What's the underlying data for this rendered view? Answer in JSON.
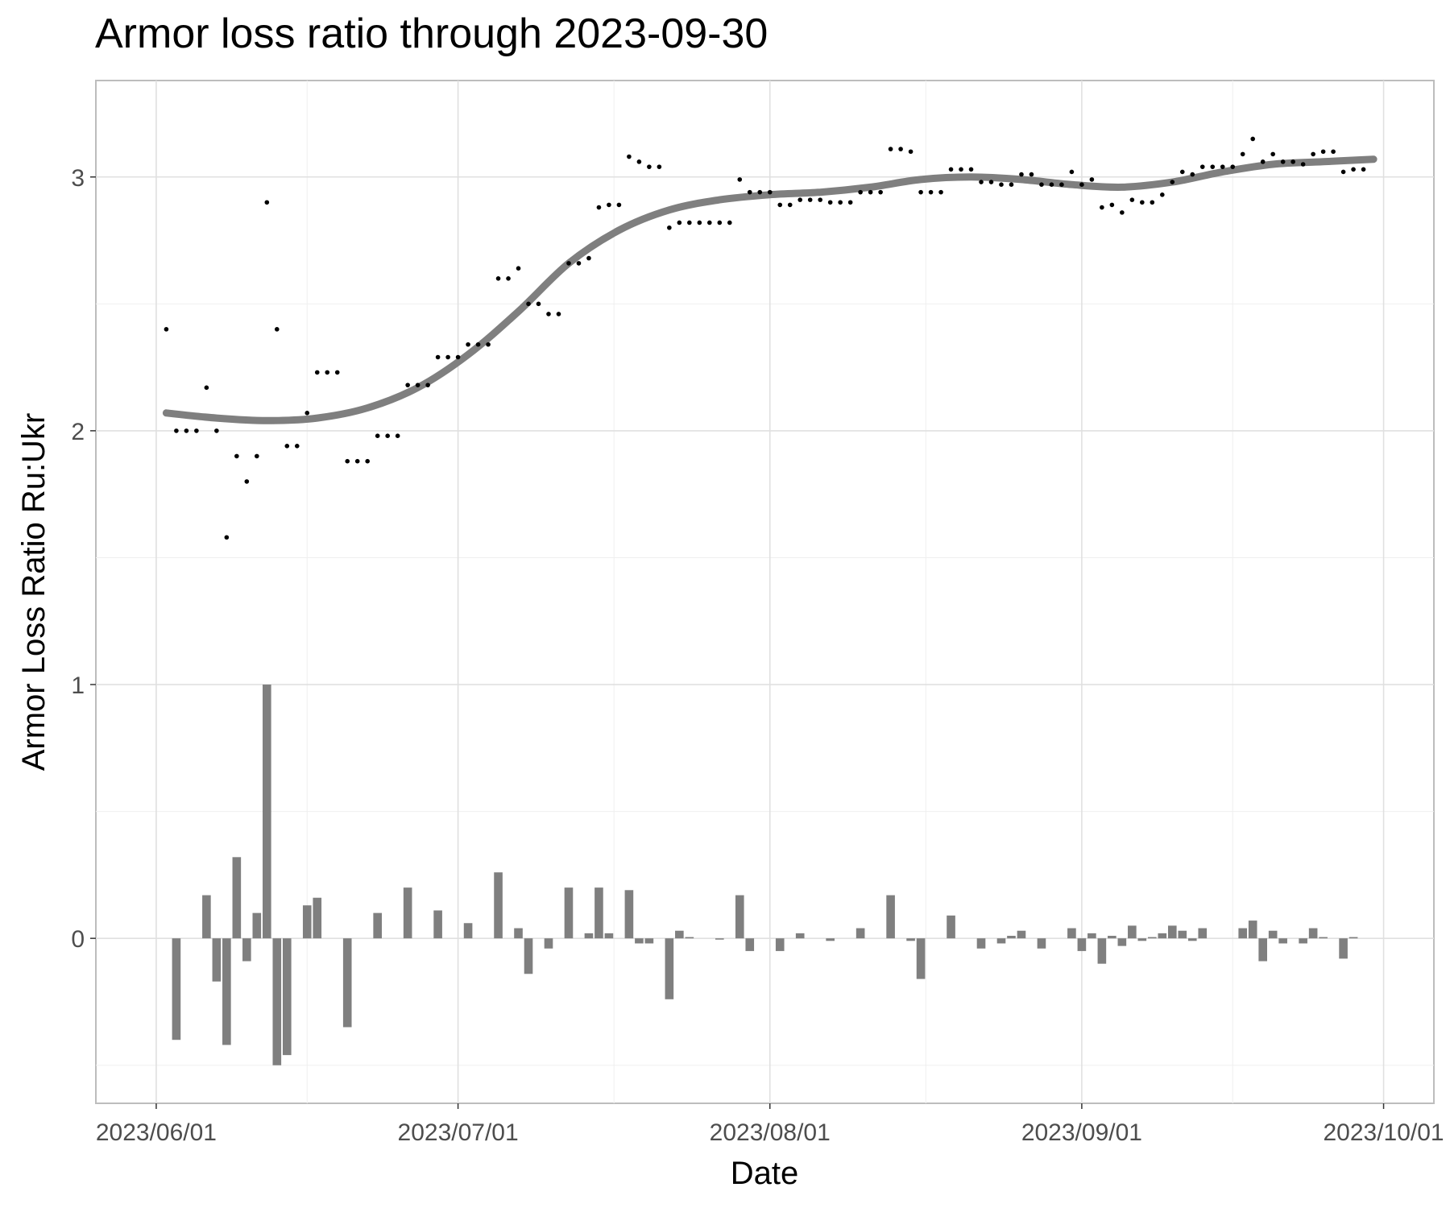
{
  "chart_data": {
    "title": "Armor loss ratio through 2023-09-30",
    "type": "scatter+line+bar",
    "xlabel": "Date",
    "ylabel": "Armor Loss Ratio Ru:Ukr",
    "x_range": [
      "2023-05-26",
      "2023-10-06"
    ],
    "ylim": [
      -0.65,
      3.38
    ],
    "y_ticks": [
      0,
      1,
      2,
      3
    ],
    "x_ticks": [
      {
        "date": "2023-06-01",
        "label": "2023/06/01"
      },
      {
        "date": "2023-07-01",
        "label": "2023/07/01"
      },
      {
        "date": "2023-08-01",
        "label": "2023/08/01"
      },
      {
        "date": "2023-09-01",
        "label": "2023/09/01"
      },
      {
        "date": "2023-10-01",
        "label": "2023/10/01"
      }
    ],
    "grid": true,
    "series": [
      {
        "type": "scatter",
        "color": "#000000",
        "points": [
          [
            "2023-06-02",
            2.4
          ],
          [
            "2023-06-03",
            2.0
          ],
          [
            "2023-06-04",
            2.0
          ],
          [
            "2023-06-05",
            2.0
          ],
          [
            "2023-06-06",
            2.17
          ],
          [
            "2023-06-07",
            2.0
          ],
          [
            "2023-06-08",
            1.58
          ],
          [
            "2023-06-09",
            1.9
          ],
          [
            "2023-06-10",
            1.8
          ],
          [
            "2023-06-11",
            1.9
          ],
          [
            "2023-06-12",
            2.9
          ],
          [
            "2023-06-13",
            2.4
          ],
          [
            "2023-06-14",
            1.94
          ],
          [
            "2023-06-15",
            1.94
          ],
          [
            "2023-06-16",
            2.07
          ],
          [
            "2023-06-17",
            2.23
          ],
          [
            "2023-06-18",
            2.23
          ],
          [
            "2023-06-19",
            2.23
          ],
          [
            "2023-06-20",
            1.88
          ],
          [
            "2023-06-21",
            1.88
          ],
          [
            "2023-06-22",
            1.88
          ],
          [
            "2023-06-23",
            1.98
          ],
          [
            "2023-06-24",
            1.98
          ],
          [
            "2023-06-25",
            1.98
          ],
          [
            "2023-06-26",
            2.18
          ],
          [
            "2023-06-27",
            2.18
          ],
          [
            "2023-06-28",
            2.18
          ],
          [
            "2023-06-29",
            2.29
          ],
          [
            "2023-06-30",
            2.29
          ],
          [
            "2023-07-01",
            2.29
          ],
          [
            "2023-07-02",
            2.34
          ],
          [
            "2023-07-03",
            2.34
          ],
          [
            "2023-07-04",
            2.34
          ],
          [
            "2023-07-05",
            2.6
          ],
          [
            "2023-07-06",
            2.6
          ],
          [
            "2023-07-07",
            2.64
          ],
          [
            "2023-07-08",
            2.5
          ],
          [
            "2023-07-09",
            2.5
          ],
          [
            "2023-07-10",
            2.46
          ],
          [
            "2023-07-11",
            2.46
          ],
          [
            "2023-07-12",
            2.66
          ],
          [
            "2023-07-13",
            2.66
          ],
          [
            "2023-07-14",
            2.68
          ],
          [
            "2023-07-15",
            2.88
          ],
          [
            "2023-07-16",
            2.89
          ],
          [
            "2023-07-17",
            2.89
          ],
          [
            "2023-07-18",
            3.08
          ],
          [
            "2023-07-19",
            3.06
          ],
          [
            "2023-07-20",
            3.04
          ],
          [
            "2023-07-21",
            3.04
          ],
          [
            "2023-07-22",
            2.8
          ],
          [
            "2023-07-23",
            2.82
          ],
          [
            "2023-07-24",
            2.82
          ],
          [
            "2023-07-25",
            2.82
          ],
          [
            "2023-07-26",
            2.82
          ],
          [
            "2023-07-27",
            2.82
          ],
          [
            "2023-07-28",
            2.82
          ],
          [
            "2023-07-29",
            2.99
          ],
          [
            "2023-07-30",
            2.94
          ],
          [
            "2023-07-31",
            2.94
          ],
          [
            "2023-08-01",
            2.94
          ],
          [
            "2023-08-02",
            2.89
          ],
          [
            "2023-08-03",
            2.89
          ],
          [
            "2023-08-04",
            2.91
          ],
          [
            "2023-08-05",
            2.91
          ],
          [
            "2023-08-06",
            2.91
          ],
          [
            "2023-08-07",
            2.9
          ],
          [
            "2023-08-08",
            2.9
          ],
          [
            "2023-08-09",
            2.9
          ],
          [
            "2023-08-10",
            2.94
          ],
          [
            "2023-08-11",
            2.94
          ],
          [
            "2023-08-12",
            2.94
          ],
          [
            "2023-08-13",
            3.11
          ],
          [
            "2023-08-14",
            3.11
          ],
          [
            "2023-08-15",
            3.1
          ],
          [
            "2023-08-16",
            2.94
          ],
          [
            "2023-08-17",
            2.94
          ],
          [
            "2023-08-18",
            2.94
          ],
          [
            "2023-08-19",
            3.03
          ],
          [
            "2023-08-20",
            3.03
          ],
          [
            "2023-08-21",
            3.03
          ],
          [
            "2023-08-22",
            2.98
          ],
          [
            "2023-08-23",
            2.98
          ],
          [
            "2023-08-24",
            2.97
          ],
          [
            "2023-08-25",
            2.97
          ],
          [
            "2023-08-26",
            3.01
          ],
          [
            "2023-08-27",
            3.01
          ],
          [
            "2023-08-28",
            2.97
          ],
          [
            "2023-08-29",
            2.97
          ],
          [
            "2023-08-30",
            2.97
          ],
          [
            "2023-08-31",
            3.02
          ],
          [
            "2023-09-01",
            2.97
          ],
          [
            "2023-09-02",
            2.99
          ],
          [
            "2023-09-03",
            2.88
          ],
          [
            "2023-09-04",
            2.89
          ],
          [
            "2023-09-05",
            2.86
          ],
          [
            "2023-09-06",
            2.91
          ],
          [
            "2023-09-07",
            2.9
          ],
          [
            "2023-09-08",
            2.9
          ],
          [
            "2023-09-09",
            2.93
          ],
          [
            "2023-09-10",
            2.98
          ],
          [
            "2023-09-11",
            3.02
          ],
          [
            "2023-09-12",
            3.01
          ],
          [
            "2023-09-13",
            3.04
          ],
          [
            "2023-09-14",
            3.04
          ],
          [
            "2023-09-15",
            3.04
          ],
          [
            "2023-09-16",
            3.04
          ],
          [
            "2023-09-17",
            3.09
          ],
          [
            "2023-09-18",
            3.15
          ],
          [
            "2023-09-19",
            3.06
          ],
          [
            "2023-09-20",
            3.09
          ],
          [
            "2023-09-21",
            3.06
          ],
          [
            "2023-09-22",
            3.06
          ],
          [
            "2023-09-23",
            3.05
          ],
          [
            "2023-09-24",
            3.09
          ],
          [
            "2023-09-25",
            3.1
          ],
          [
            "2023-09-26",
            3.1
          ],
          [
            "2023-09-27",
            3.02
          ],
          [
            "2023-09-28",
            3.03
          ],
          [
            "2023-09-29",
            3.03
          ]
        ]
      },
      {
        "type": "line",
        "smooth": true,
        "color": "#7f7f7f",
        "points": [
          [
            "2023-06-02",
            2.07
          ],
          [
            "2023-06-07",
            2.05
          ],
          [
            "2023-06-12",
            2.04
          ],
          [
            "2023-06-17",
            2.05
          ],
          [
            "2023-06-22",
            2.09
          ],
          [
            "2023-06-27",
            2.17
          ],
          [
            "2023-07-02",
            2.3
          ],
          [
            "2023-07-07",
            2.47
          ],
          [
            "2023-07-12",
            2.66
          ],
          [
            "2023-07-17",
            2.79
          ],
          [
            "2023-07-22",
            2.87
          ],
          [
            "2023-07-27",
            2.91
          ],
          [
            "2023-08-01",
            2.93
          ],
          [
            "2023-08-06",
            2.94
          ],
          [
            "2023-08-11",
            2.96
          ],
          [
            "2023-08-16",
            2.99
          ],
          [
            "2023-08-21",
            3.0
          ],
          [
            "2023-08-26",
            2.99
          ],
          [
            "2023-08-31",
            2.97
          ],
          [
            "2023-09-05",
            2.96
          ],
          [
            "2023-09-10",
            2.98
          ],
          [
            "2023-09-15",
            3.02
          ],
          [
            "2023-09-20",
            3.05
          ],
          [
            "2023-09-25",
            3.06
          ],
          [
            "2023-09-30",
            3.07
          ]
        ]
      },
      {
        "type": "bar",
        "color": "#7f7f7f",
        "points": [
          [
            "2023-06-03",
            -0.4
          ],
          [
            "2023-06-06",
            0.17
          ],
          [
            "2023-06-07",
            -0.17
          ],
          [
            "2023-06-08",
            -0.42
          ],
          [
            "2023-06-09",
            0.32
          ],
          [
            "2023-06-10",
            -0.09
          ],
          [
            "2023-06-11",
            0.1
          ],
          [
            "2023-06-12",
            1.0
          ],
          [
            "2023-06-13",
            -0.5
          ],
          [
            "2023-06-14",
            -0.46
          ],
          [
            "2023-06-16",
            0.13
          ],
          [
            "2023-06-17",
            0.16
          ],
          [
            "2023-06-20",
            -0.35
          ],
          [
            "2023-06-23",
            0.1
          ],
          [
            "2023-06-26",
            0.2
          ],
          [
            "2023-06-29",
            0.11
          ],
          [
            "2023-07-02",
            0.06
          ],
          [
            "2023-07-05",
            0.26
          ],
          [
            "2023-07-07",
            0.04
          ],
          [
            "2023-07-08",
            -0.14
          ],
          [
            "2023-07-10",
            -0.04
          ],
          [
            "2023-07-12",
            0.2
          ],
          [
            "2023-07-14",
            0.02
          ],
          [
            "2023-07-15",
            0.2
          ],
          [
            "2023-07-16",
            0.02
          ],
          [
            "2023-07-18",
            0.19
          ],
          [
            "2023-07-19",
            -0.02
          ],
          [
            "2023-07-20",
            -0.02
          ],
          [
            "2023-07-22",
            -0.24
          ],
          [
            "2023-07-23",
            0.03
          ],
          [
            "2023-07-24",
            0.005
          ],
          [
            "2023-07-27",
            -0.005
          ],
          [
            "2023-07-29",
            0.17
          ],
          [
            "2023-07-30",
            -0.05
          ],
          [
            "2023-08-02",
            -0.05
          ],
          [
            "2023-08-04",
            0.02
          ],
          [
            "2023-08-07",
            -0.01
          ],
          [
            "2023-08-10",
            0.04
          ],
          [
            "2023-08-13",
            0.17
          ],
          [
            "2023-08-15",
            -0.01
          ],
          [
            "2023-08-16",
            -0.16
          ],
          [
            "2023-08-19",
            0.09
          ],
          [
            "2023-08-22",
            -0.04
          ],
          [
            "2023-08-24",
            -0.02
          ],
          [
            "2023-08-25",
            0.01
          ],
          [
            "2023-08-26",
            0.03
          ],
          [
            "2023-08-28",
            -0.04
          ],
          [
            "2023-08-31",
            0.04
          ],
          [
            "2023-09-01",
            -0.05
          ],
          [
            "2023-09-02",
            0.02
          ],
          [
            "2023-09-03",
            -0.1
          ],
          [
            "2023-09-04",
            0.01
          ],
          [
            "2023-09-05",
            -0.03
          ],
          [
            "2023-09-06",
            0.05
          ],
          [
            "2023-09-07",
            -0.01
          ],
          [
            "2023-09-08",
            0.005
          ],
          [
            "2023-09-09",
            0.02
          ],
          [
            "2023-09-10",
            0.05
          ],
          [
            "2023-09-11",
            0.03
          ],
          [
            "2023-09-12",
            -0.01
          ],
          [
            "2023-09-13",
            0.04
          ],
          [
            "2023-09-17",
            0.04
          ],
          [
            "2023-09-18",
            0.07
          ],
          [
            "2023-09-19",
            -0.09
          ],
          [
            "2023-09-20",
            0.03
          ],
          [
            "2023-09-21",
            -0.02
          ],
          [
            "2023-09-23",
            -0.02
          ],
          [
            "2023-09-24",
            0.04
          ],
          [
            "2023-09-25",
            0.005
          ],
          [
            "2023-09-27",
            -0.08
          ],
          [
            "2023-09-28",
            0.005
          ]
        ]
      }
    ]
  }
}
